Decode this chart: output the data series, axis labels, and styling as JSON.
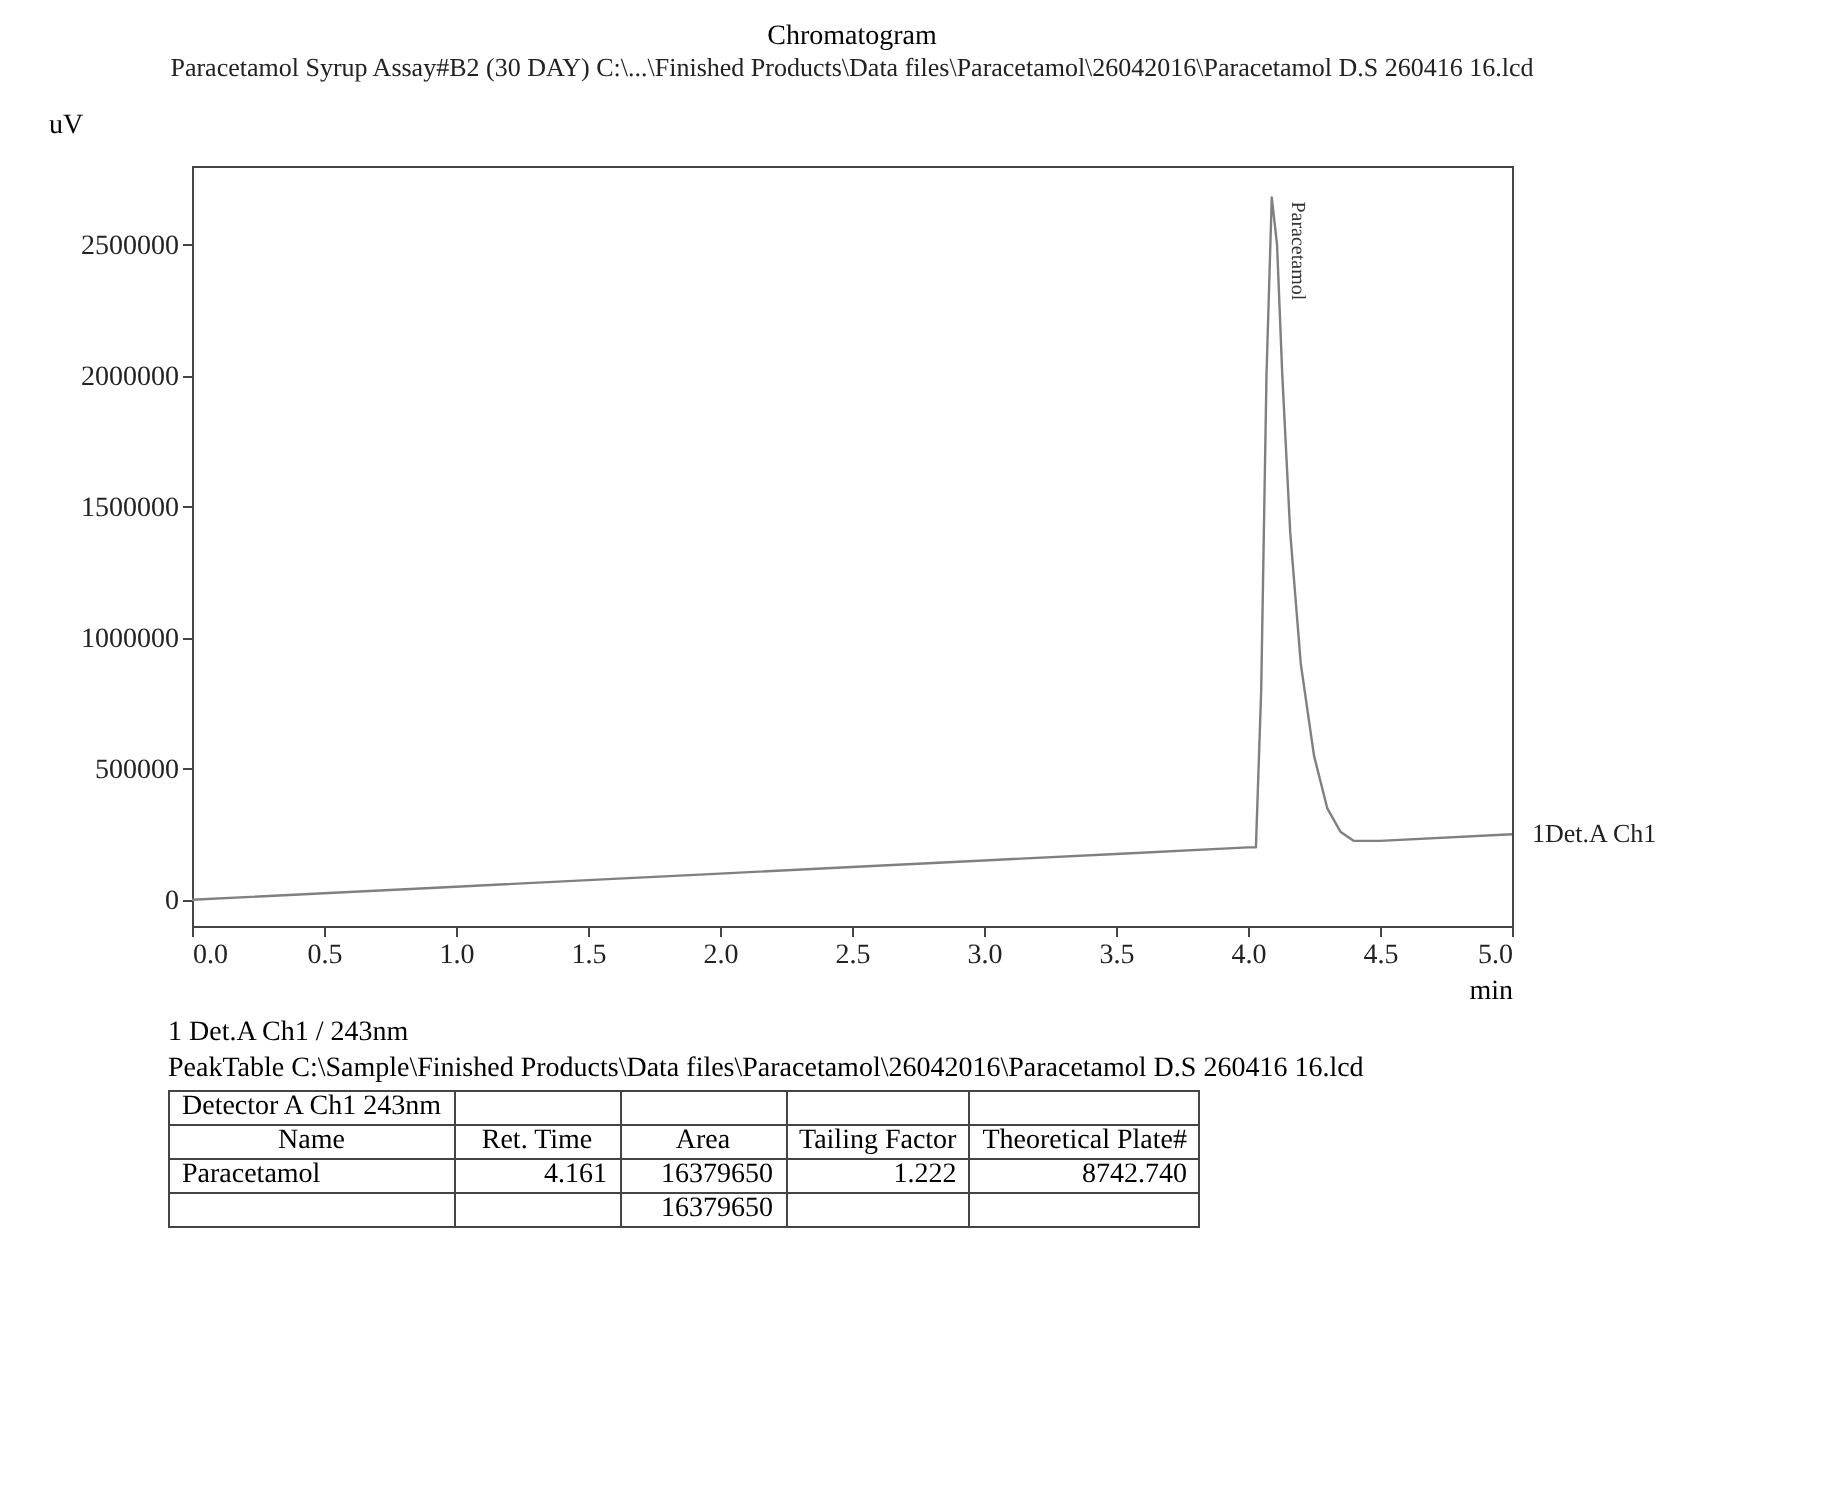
{
  "chart_data": {
    "type": "line",
    "title": "Chromatogram",
    "subtitle": "Paracetamol Syrup Assay#B2 (30 DAY) C:\\...\\Finished Products\\Data files\\Paracetamol\\26042016\\Paracetamol D.S  260416  16.lcd",
    "xlabel": "min",
    "ylabel": "uV",
    "x": [
      0,
      0.5,
      1,
      1.5,
      2,
      2.5,
      3,
      3.5,
      4,
      4.03,
      4.05,
      4.07,
      4.09,
      4.11,
      4.13,
      4.16,
      4.2,
      4.25,
      4.3,
      4.35,
      4.4,
      4.5,
      5
    ],
    "series": [
      {
        "name": "1Det.A Ch1",
        "color": "#808080",
        "values": [
          0,
          25000,
          50000,
          75000,
          100000,
          125000,
          150000,
          175000,
          200000,
          200000,
          800000,
          2000000,
          2680000,
          2500000,
          2000000,
          1400000,
          900000,
          550000,
          350000,
          260000,
          225000,
          225000,
          250000
        ]
      }
    ],
    "xlim": [
      0,
      5
    ],
    "xticks": [
      {
        "value": 0,
        "label": "0.0"
      },
      {
        "value": 0.5,
        "label": "0.5"
      },
      {
        "value": 1,
        "label": "1.0"
      },
      {
        "value": 1.5,
        "label": "1.5"
      },
      {
        "value": 2,
        "label": "2.0"
      },
      {
        "value": 2.5,
        "label": "2.5"
      },
      {
        "value": 3,
        "label": "3.0"
      },
      {
        "value": 3.5,
        "label": "3.5"
      },
      {
        "value": 4,
        "label": "4.0"
      },
      {
        "value": 4.5,
        "label": "4.5"
      },
      {
        "value": 5,
        "label": "5.0"
      }
    ],
    "ylim": [
      -100000,
      2800000
    ],
    "yticks": [
      0,
      500000,
      1000000,
      1500000,
      2000000,
      2500000
    ],
    "grid": false,
    "legend": false,
    "annotations": [
      {
        "text": "Paracetamol",
        "x": 4.09,
        "y": 2680000
      },
      "1   Det.A Ch1 / 243nm",
      "PeakTable C:\\Sample\\Finished Products\\Data files\\Paracetamol\\26042016\\Paracetamol D.S  260416  16.lcd",
      "Detector A Ch1 243nm",
      "Name",
      "Ret. Time",
      "Area",
      "Tailing Factor",
      "Theoretical Plate#",
      "Paracetamol",
      "4.161",
      "16379650",
      "1.222",
      "8742.740",
      "16379650"
    ]
  }
}
